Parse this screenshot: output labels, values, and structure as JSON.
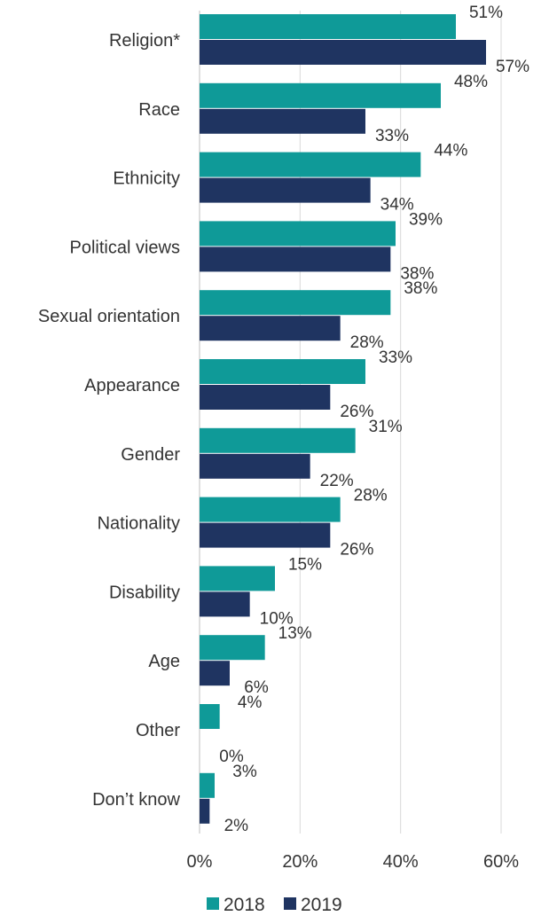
{
  "chart_data": {
    "type": "bar",
    "orientation": "horizontal",
    "categories": [
      "Religion*",
      "Race",
      "Ethnicity",
      "Political views",
      "Sexual orientation",
      "Appearance",
      "Gender",
      "Nationality",
      "Disability",
      "Age",
      "Other",
      "Don’t know"
    ],
    "series": [
      {
        "name": "2018",
        "color": "#0f9a98",
        "values": [
          51,
          48,
          44,
          39,
          38,
          33,
          31,
          28,
          15,
          13,
          4,
          3
        ],
        "labels": [
          "51%",
          "48%",
          "44%",
          "39%",
          "38%",
          "33%",
          "31%",
          "28%",
          "15%",
          "13%",
          "4%",
          "3%"
        ]
      },
      {
        "name": "2019",
        "color": "#1f3461",
        "values": [
          57,
          33,
          34,
          38,
          28,
          26,
          22,
          26,
          10,
          6,
          0,
          2
        ],
        "labels": [
          "57%",
          "33%",
          "34%",
          "38%",
          "28%",
          "26%",
          "22%",
          "26%",
          "10%",
          "6%",
          "0%",
          "2%"
        ]
      }
    ],
    "xlim": [
      0,
      60
    ],
    "xticks": [
      0,
      20,
      40,
      60
    ],
    "xtick_labels": [
      "0%",
      "20%",
      "40%",
      "60%"
    ],
    "grid": true,
    "legend_position": "bottom-center"
  }
}
